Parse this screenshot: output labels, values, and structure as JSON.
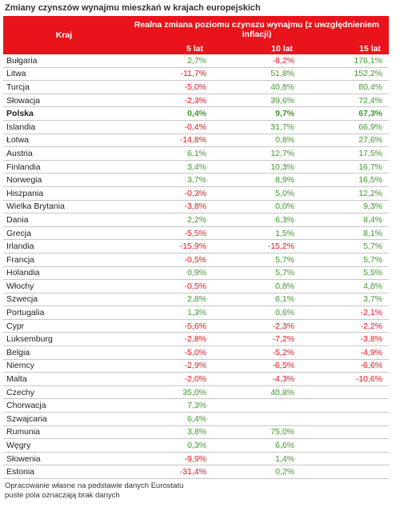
{
  "title": "Zmiany czynszów wynajmu mieszkań w krajach europejskich",
  "header": {
    "country": "Kraj",
    "change": "Realna zmiana poziomu czynszu wynajmu (z uwzględnieniem inflacji)",
    "y5": "5 lat",
    "y10": "10 lat",
    "y15": "15 lat"
  },
  "colors": {
    "header_bg": "#e8131b",
    "positive": "#3e9a2a",
    "negative": "#e8131b"
  },
  "rows": [
    {
      "country": "Bułgaria",
      "y5": "2,7%",
      "y10": "-8,2%",
      "y15": "176,1%"
    },
    {
      "country": "Litwa",
      "y5": "-11,7%",
      "y10": "51,8%",
      "y15": "152,2%"
    },
    {
      "country": "Turcja",
      "y5": "-5,0%",
      "y10": "40,8%",
      "y15": "80,4%"
    },
    {
      "country": "Słowacja",
      "y5": "-2,3%",
      "y10": "39,6%",
      "y15": "72,4%"
    },
    {
      "country": "Polska",
      "y5": "0,4%",
      "y10": "9,7%",
      "y15": "67,3%",
      "bold": true
    },
    {
      "country": "Islandia",
      "y5": "-0,4%",
      "y10": "31,7%",
      "y15": "66,9%"
    },
    {
      "country": "Łotwa",
      "y5": "-14,8%",
      "y10": "0,8%",
      "y15": "27,6%"
    },
    {
      "country": "Austria",
      "y5": "6,1%",
      "y10": "12,7%",
      "y15": "17,5%"
    },
    {
      "country": "Finlandia",
      "y5": "3,4%",
      "y10": "10,3%",
      "y15": "16,7%"
    },
    {
      "country": "Norwegia",
      "y5": "3,7%",
      "y10": "8,9%",
      "y15": "16,5%"
    },
    {
      "country": "Hiszpania",
      "y5": "-0,3%",
      "y10": "5,0%",
      "y15": "12,2%"
    },
    {
      "country": "Wielka Brytania",
      "y5": "-3,8%",
      "y10": "0,0%",
      "y15": "9,3%"
    },
    {
      "country": "Dania",
      "y5": "2,2%",
      "y10": "6,3%",
      "y15": "8,4%"
    },
    {
      "country": "Grecja",
      "y5": "-5,5%",
      "y10": "1,5%",
      "y15": "8,1%"
    },
    {
      "country": "Irlandia",
      "y5": "-15,9%",
      "y10": "-15,2%",
      "y15": "5,7%"
    },
    {
      "country": "Francja",
      "y5": "-0,5%",
      "y10": "5,7%",
      "y15": "5,7%"
    },
    {
      "country": "Holandia",
      "y5": "0,9%",
      "y10": "5,7%",
      "y15": "5,5%"
    },
    {
      "country": "Włochy",
      "y5": "-0,5%",
      "y10": "0,8%",
      "y15": "4,8%"
    },
    {
      "country": "Szwecja",
      "y5": "2,8%",
      "y10": "6,1%",
      "y15": "3,7%"
    },
    {
      "country": "Portugalia",
      "y5": "1,3%",
      "y10": "0,6%",
      "y15": "-2,1%"
    },
    {
      "country": "Cypr",
      "y5": "-5,6%",
      "y10": "-2,3%",
      "y15": "-2,2%"
    },
    {
      "country": "Luksemburg",
      "y5": "-2,8%",
      "y10": "-7,2%",
      "y15": "-3,8%"
    },
    {
      "country": "Belgia",
      "y5": "-5,0%",
      "y10": "-5,2%",
      "y15": "-4,9%"
    },
    {
      "country": "Niemcy",
      "y5": "-2,9%",
      "y10": "-6,5%",
      "y15": "-6,6%"
    },
    {
      "country": "Malta",
      "y5": "-2,0%",
      "y10": "-4,3%",
      "y15": "-10,6%"
    },
    {
      "country": "Czechy",
      "y5": "35,0%",
      "y10": "40,8%",
      "y15": ""
    },
    {
      "country": "Chorwacja",
      "y5": "7,3%",
      "y10": "",
      "y15": ""
    },
    {
      "country": "Szwajcaria",
      "y5": "6,4%",
      "y10": "",
      "y15": ""
    },
    {
      "country": "Rumunia",
      "y5": "3,8%",
      "y10": "75,0%",
      "y15": ""
    },
    {
      "country": "Węgry",
      "y5": "0,3%",
      "y10": "6,6%",
      "y15": ""
    },
    {
      "country": "Słowenia",
      "y5": "-9,9%",
      "y10": "1,4%",
      "y15": ""
    },
    {
      "country": "Estonia",
      "y5": "-31,4%",
      "y10": "0,2%",
      "y15": ""
    }
  ],
  "footer": {
    "line1": "Opracowanie własne na podstawie danych Eurostatu",
    "line2": "puste pola oznaczają brak danych"
  }
}
